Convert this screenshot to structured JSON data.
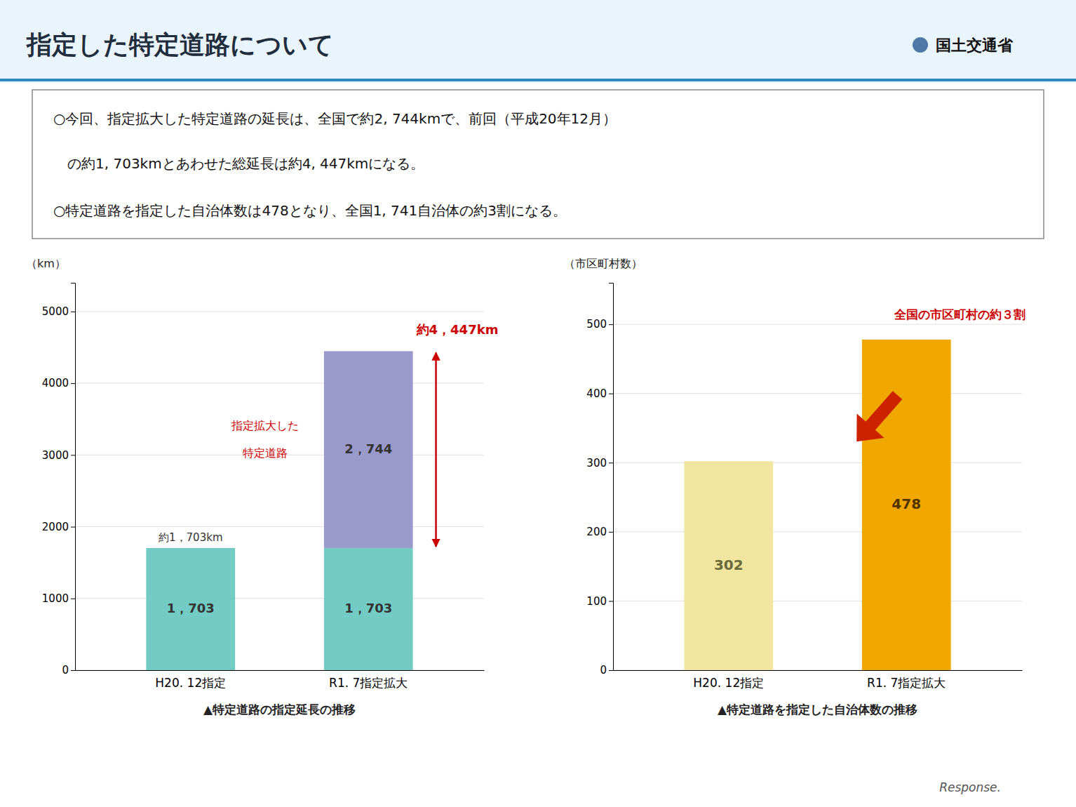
{
  "title": "指定した特定道路について",
  "annotations": [
    "○今回、指定拡大した特定道路の延長は、全国で約2, 744kmで、前回（平成20年12月）",
    "　の約1, 703kmとあわせた総延長は約4, 447kmになる。",
    "○特定道路を指定した自治体数は478となり、全国1, 741自治体の約3割になる。",
    "国土交通省",
    "Response."
  ],
  "chart_data": [
    {
      "type": "bar",
      "stacked": true,
      "categories": [
        "H20. 12指定",
        "R1. 7指定拡大"
      ],
      "series": [
        {
          "color": "#72ccc4",
          "values": [
            1703,
            1703
          ],
          "value_labels": [
            "1，703",
            "1，703"
          ]
        },
        {
          "color": "#9999cc",
          "values": [
            null,
            2744
          ],
          "value_labels": [
            null,
            "2，744"
          ]
        }
      ],
      "ylabel": "（km）",
      "xlabel": "▲特定道路の指定延長の推移",
      "ylim": [
        0,
        5400
      ],
      "yticks": [
        0,
        1000,
        2000,
        3000,
        4000,
        5000
      ],
      "grid": true,
      "data_labels": true,
      "annotations": [
        "約1，703km",
        "約4，447km",
        "指定拡大した",
        "特定道路"
      ]
    },
    {
      "type": "bar",
      "categories": [
        "H20. 12指定",
        "R1. 7指定拡大"
      ],
      "values": [
        302,
        478
      ],
      "colors": [
        "#f0e6a0",
        "#f0a800"
      ],
      "ylabel": "（市区町村数）",
      "xlabel": "▲特定道路を指定した自治体数の推移",
      "ylim": [
        0,
        560
      ],
      "yticks": [
        0,
        100,
        200,
        300,
        400,
        500
      ],
      "grid": true,
      "data_labels": true,
      "annotations": [
        "全国の市区町村の約３割"
      ]
    }
  ]
}
